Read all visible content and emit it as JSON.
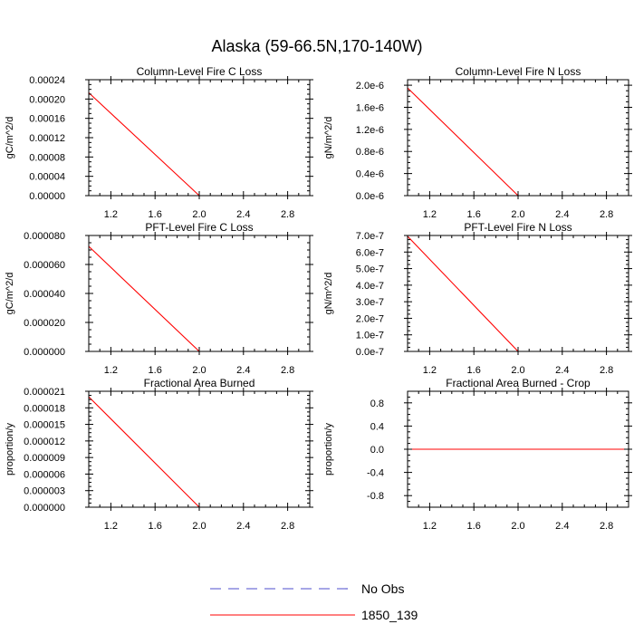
{
  "title": "Alaska (59-66.5N,170-140W)",
  "chart_data": [
    {
      "type": "line",
      "title": "Column-Level Fire C Loss",
      "ylabel": "gC/m^2/d",
      "xlim": [
        1.0,
        3.0
      ],
      "ylim": [
        0,
        0.00024
      ],
      "xticks": [
        1.2,
        1.6,
        2.0,
        2.4,
        2.8
      ],
      "xtick_labels": [
        "1.2",
        "1.6",
        "2.0",
        "2.4",
        "2.8"
      ],
      "yticks": [
        0,
        4e-05,
        8e-05,
        0.00012,
        0.00016,
        0.0002,
        0.00024
      ],
      "ytick_labels": [
        "0.00000",
        "0.00004",
        "0.00008",
        "0.00012",
        "0.00016",
        "0.00020",
        "0.00024"
      ],
      "series": [
        {
          "name": "1850_139",
          "color": "#ff0000",
          "dash": "solid",
          "x": [
            1.0,
            2.0,
            3.0
          ],
          "values": [
            0.000213,
            0.0,
            0.0
          ]
        }
      ]
    },
    {
      "type": "line",
      "title": "Column-Level Fire N Loss",
      "ylabel": "gN/m^2/d",
      "xlim": [
        1.0,
        3.0
      ],
      "ylim": [
        0,
        2.1e-06
      ],
      "xticks": [
        1.2,
        1.6,
        2.0,
        2.4,
        2.8
      ],
      "xtick_labels": [
        "1.2",
        "1.6",
        "2.0",
        "2.4",
        "2.8"
      ],
      "yticks": [
        0,
        4e-07,
        8e-07,
        1.2e-06,
        1.6e-06,
        2e-06
      ],
      "ytick_labels": [
        "0.0e-6",
        "0.4e-6",
        "0.8e-6",
        "1.2e-6",
        "1.6e-6",
        "2.0e-6"
      ],
      "series": [
        {
          "name": "1850_139",
          "color": "#ff0000",
          "dash": "solid",
          "x": [
            1.0,
            2.0,
            3.0
          ],
          "values": [
            1.95e-06,
            0.0,
            0.0
          ]
        }
      ]
    },
    {
      "type": "line",
      "title": "PFT-Level Fire C Loss",
      "ylabel": "gC/m^2/d",
      "xlim": [
        1.0,
        3.0
      ],
      "ylim": [
        0,
        8e-05
      ],
      "xticks": [
        1.2,
        1.6,
        2.0,
        2.4,
        2.8
      ],
      "xtick_labels": [
        "1.2",
        "1.6",
        "2.0",
        "2.4",
        "2.8"
      ],
      "yticks": [
        0,
        2e-05,
        4e-05,
        6e-05,
        8e-05
      ],
      "ytick_labels": [
        "0.000000",
        "0.000020",
        "0.000040",
        "0.000060",
        "0.000080"
      ],
      "series": [
        {
          "name": "1850_139",
          "color": "#ff0000",
          "dash": "solid",
          "x": [
            1.0,
            2.0,
            3.0
          ],
          "values": [
            7.25e-05,
            0.0,
            0.0
          ]
        }
      ]
    },
    {
      "type": "line",
      "title": "PFT-Level Fire N Loss",
      "ylabel": "gN/m^2/d",
      "xlim": [
        1.0,
        3.0
      ],
      "ylim": [
        0,
        7e-07
      ],
      "xticks": [
        1.2,
        1.6,
        2.0,
        2.4,
        2.8
      ],
      "xtick_labels": [
        "1.2",
        "1.6",
        "2.0",
        "2.4",
        "2.8"
      ],
      "yticks": [
        0,
        1e-07,
        2e-07,
        3e-07,
        4e-07,
        5e-07,
        6e-07,
        7e-07
      ],
      "ytick_labels": [
        "0.0e-7",
        "1.0e-7",
        "2.0e-7",
        "3.0e-7",
        "4.0e-7",
        "5.0e-7",
        "6.0e-7",
        "7.0e-7"
      ],
      "series": [
        {
          "name": "1850_139",
          "color": "#ff0000",
          "dash": "solid",
          "x": [
            1.0,
            2.0,
            3.0
          ],
          "values": [
            6.95e-07,
            0.0,
            0.0
          ]
        }
      ]
    },
    {
      "type": "line",
      "title": "Fractional Area Burned",
      "ylabel": "proportion/y",
      "xlim": [
        1.0,
        3.0
      ],
      "ylim": [
        0,
        2.1e-05
      ],
      "xticks": [
        1.2,
        1.6,
        2.0,
        2.4,
        2.8
      ],
      "xtick_labels": [
        "1.2",
        "1.6",
        "2.0",
        "2.4",
        "2.8"
      ],
      "yticks": [
        0,
        3e-06,
        6e-06,
        9e-06,
        1.2e-05,
        1.5e-05,
        1.8e-05,
        2.1e-05
      ],
      "ytick_labels": [
        "0.000000",
        "0.000003",
        "0.000006",
        "0.000009",
        "0.000012",
        "0.000015",
        "0.000018",
        "0.000021"
      ],
      "series": [
        {
          "name": "1850_139",
          "color": "#ff0000",
          "dash": "solid",
          "x": [
            1.0,
            2.0,
            3.0
          ],
          "values": [
            2e-05,
            0.0,
            0.0
          ]
        }
      ]
    },
    {
      "type": "line",
      "title": "Fractional Area Burned - Crop",
      "ylabel": "proportion/y",
      "xlim": [
        1.0,
        3.0
      ],
      "ylim": [
        -1.0,
        1.0
      ],
      "xticks": [
        1.2,
        1.6,
        2.0,
        2.4,
        2.8
      ],
      "xtick_labels": [
        "1.2",
        "1.6",
        "2.0",
        "2.4",
        "2.8"
      ],
      "yticks": [
        -0.8,
        -0.4,
        0.0,
        0.4,
        0.8
      ],
      "ytick_labels": [
        "-0.8",
        "-0.4",
        "0.0",
        "0.4",
        "0.8"
      ],
      "series": [
        {
          "name": "1850_139",
          "color": "#ff0000",
          "dash": "solid",
          "x": [
            1.0,
            2.0,
            3.0
          ],
          "values": [
            0.0,
            0.0,
            0.0
          ]
        }
      ]
    }
  ],
  "legend": {
    "placement": "bottom-center",
    "items": [
      {
        "label": "No Obs",
        "color": "#4d4dcc",
        "dash": "dashed"
      },
      {
        "label": "1850_139",
        "color": "#ff0000",
        "dash": "solid"
      }
    ]
  }
}
